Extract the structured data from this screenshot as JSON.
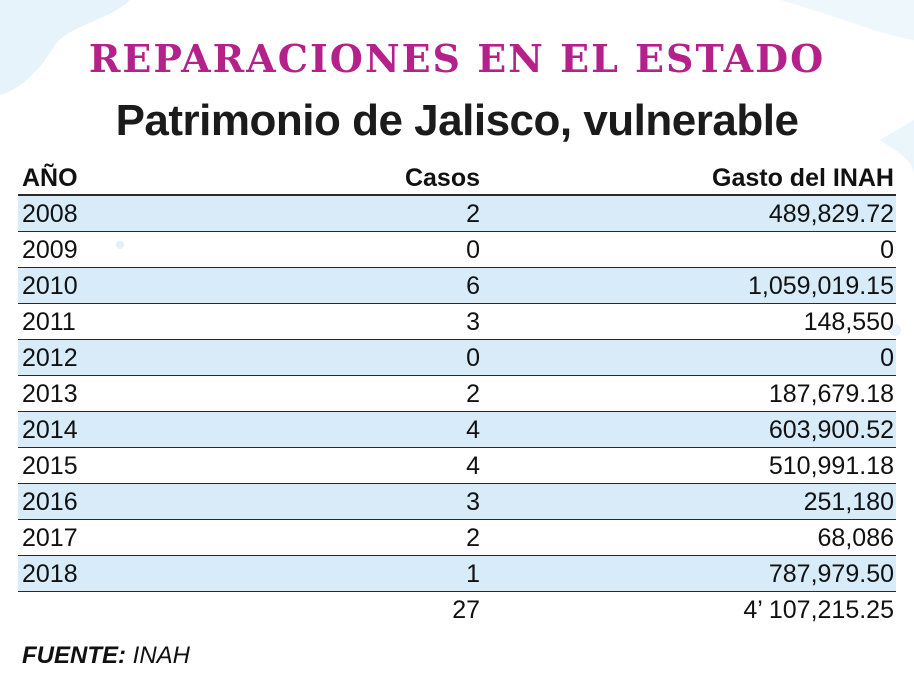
{
  "kicker": "REPARACIONES EN EL ESTADO",
  "headline": "Patrimonio de Jalisco, vulnerable",
  "table": {
    "headers": {
      "year": "AÑO",
      "cases": "Casos",
      "spend": "Gasto del INAH"
    },
    "rows": [
      {
        "year": "2008",
        "cases": "2",
        "spend": "489,829.72"
      },
      {
        "year": "2009",
        "cases": "0",
        "spend": "0"
      },
      {
        "year": "2010",
        "cases": "6",
        "spend": "1,059,019.15"
      },
      {
        "year": "2011",
        "cases": "3",
        "spend": "148,550"
      },
      {
        "year": "2012",
        "cases": "0",
        "spend": "0"
      },
      {
        "year": "2013",
        "cases": "2",
        "spend": "187,679.18"
      },
      {
        "year": "2014",
        "cases": "4",
        "spend": "603,900.52"
      },
      {
        "year": "2015",
        "cases": "4",
        "spend": "510,991.18"
      },
      {
        "year": "2016",
        "cases": "3",
        "spend": "251,180"
      },
      {
        "year": "2017",
        "cases": "2",
        "spend": "68,086"
      },
      {
        "year": "2018",
        "cases": "1",
        "spend": "787,979.50"
      }
    ],
    "total": {
      "year": "",
      "cases": "27",
      "spend": "4’ 107,215.25"
    }
  },
  "source": {
    "label": "FUENTE:",
    "value": "INAH"
  },
  "colors": {
    "kicker": "#b5218a",
    "row_shade": "#d7ebf8",
    "text": "#111111"
  }
}
